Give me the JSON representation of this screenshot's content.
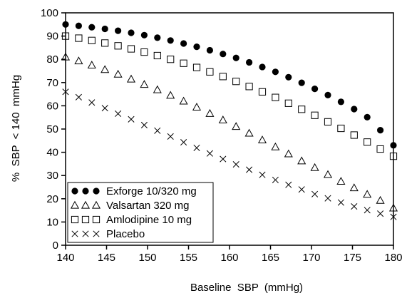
{
  "chart_data": {
    "type": "scatter",
    "title": "",
    "xlabel": "Baseline  SBP  (mmHg)",
    "ylabel": "%  SBP  < 140  mmHg",
    "xlim": [
      140,
      180
    ],
    "ylim": [
      0,
      100
    ],
    "xticks": [
      140,
      145,
      150,
      155,
      160,
      165,
      170,
      175,
      180
    ],
    "yticks": [
      0,
      10,
      20,
      30,
      40,
      50,
      60,
      70,
      80,
      90,
      100
    ],
    "grid": false,
    "legend_position": "bottom-left",
    "x": [
      140,
      141.6,
      143.2,
      144.8,
      146.4,
      148,
      149.6,
      151.2,
      152.8,
      154.4,
      156,
      157.6,
      159.2,
      160.8,
      162.4,
      164,
      165.6,
      167.2,
      168.8,
      170.4,
      172,
      173.6,
      175.2,
      176.8,
      178.4,
      180
    ],
    "series": [
      {
        "name": "Exforge  10/320  mg",
        "marker": "filled-circle",
        "color": "#000000",
        "values": [
          95,
          94.4,
          93.8,
          93.1,
          92.3,
          91.4,
          90.4,
          89.3,
          88.1,
          86.8,
          85.4,
          83.9,
          82.3,
          80.6,
          78.7,
          76.7,
          74.6,
          72.3,
          69.9,
          67.3,
          64.6,
          61.7,
          58.6,
          55.1,
          49.5,
          43
        ]
      },
      {
        "name": "Valsartan  320  mg",
        "marker": "open-triangle",
        "color": "#000000",
        "values": [
          81,
          79.3,
          77.5,
          75.6,
          73.6,
          71.5,
          69.2,
          66.9,
          64.5,
          62.0,
          59.4,
          56.7,
          53.9,
          51.1,
          48.2,
          45.3,
          42.3,
          39.3,
          36.3,
          33.4,
          30.4,
          27.5,
          24.7,
          21.9,
          19.3,
          16
        ]
      },
      {
        "name": "Amlodipine  10  mg",
        "marker": "open-square",
        "color": "#000000",
        "values": [
          90,
          89.1,
          88.1,
          87.0,
          85.8,
          84.5,
          83.1,
          81.6,
          80.0,
          78.3,
          76.5,
          74.6,
          72.6,
          70.5,
          68.3,
          66.0,
          63.6,
          61.1,
          58.5,
          55.9,
          53.1,
          50.3,
          47.4,
          44.4,
          41.4,
          38.3
        ]
      },
      {
        "name": "Placebo",
        "marker": "cross",
        "color": "#000000",
        "values": [
          66,
          63.7,
          61.4,
          59.0,
          56.6,
          54.2,
          51.7,
          49.3,
          46.8,
          44.3,
          41.9,
          39.5,
          37.1,
          34.8,
          32.5,
          30.3,
          28.1,
          26.0,
          24.0,
          22.0,
          20.2,
          18.4,
          16.7,
          15.1,
          13.6,
          12.2
        ]
      }
    ]
  }
}
